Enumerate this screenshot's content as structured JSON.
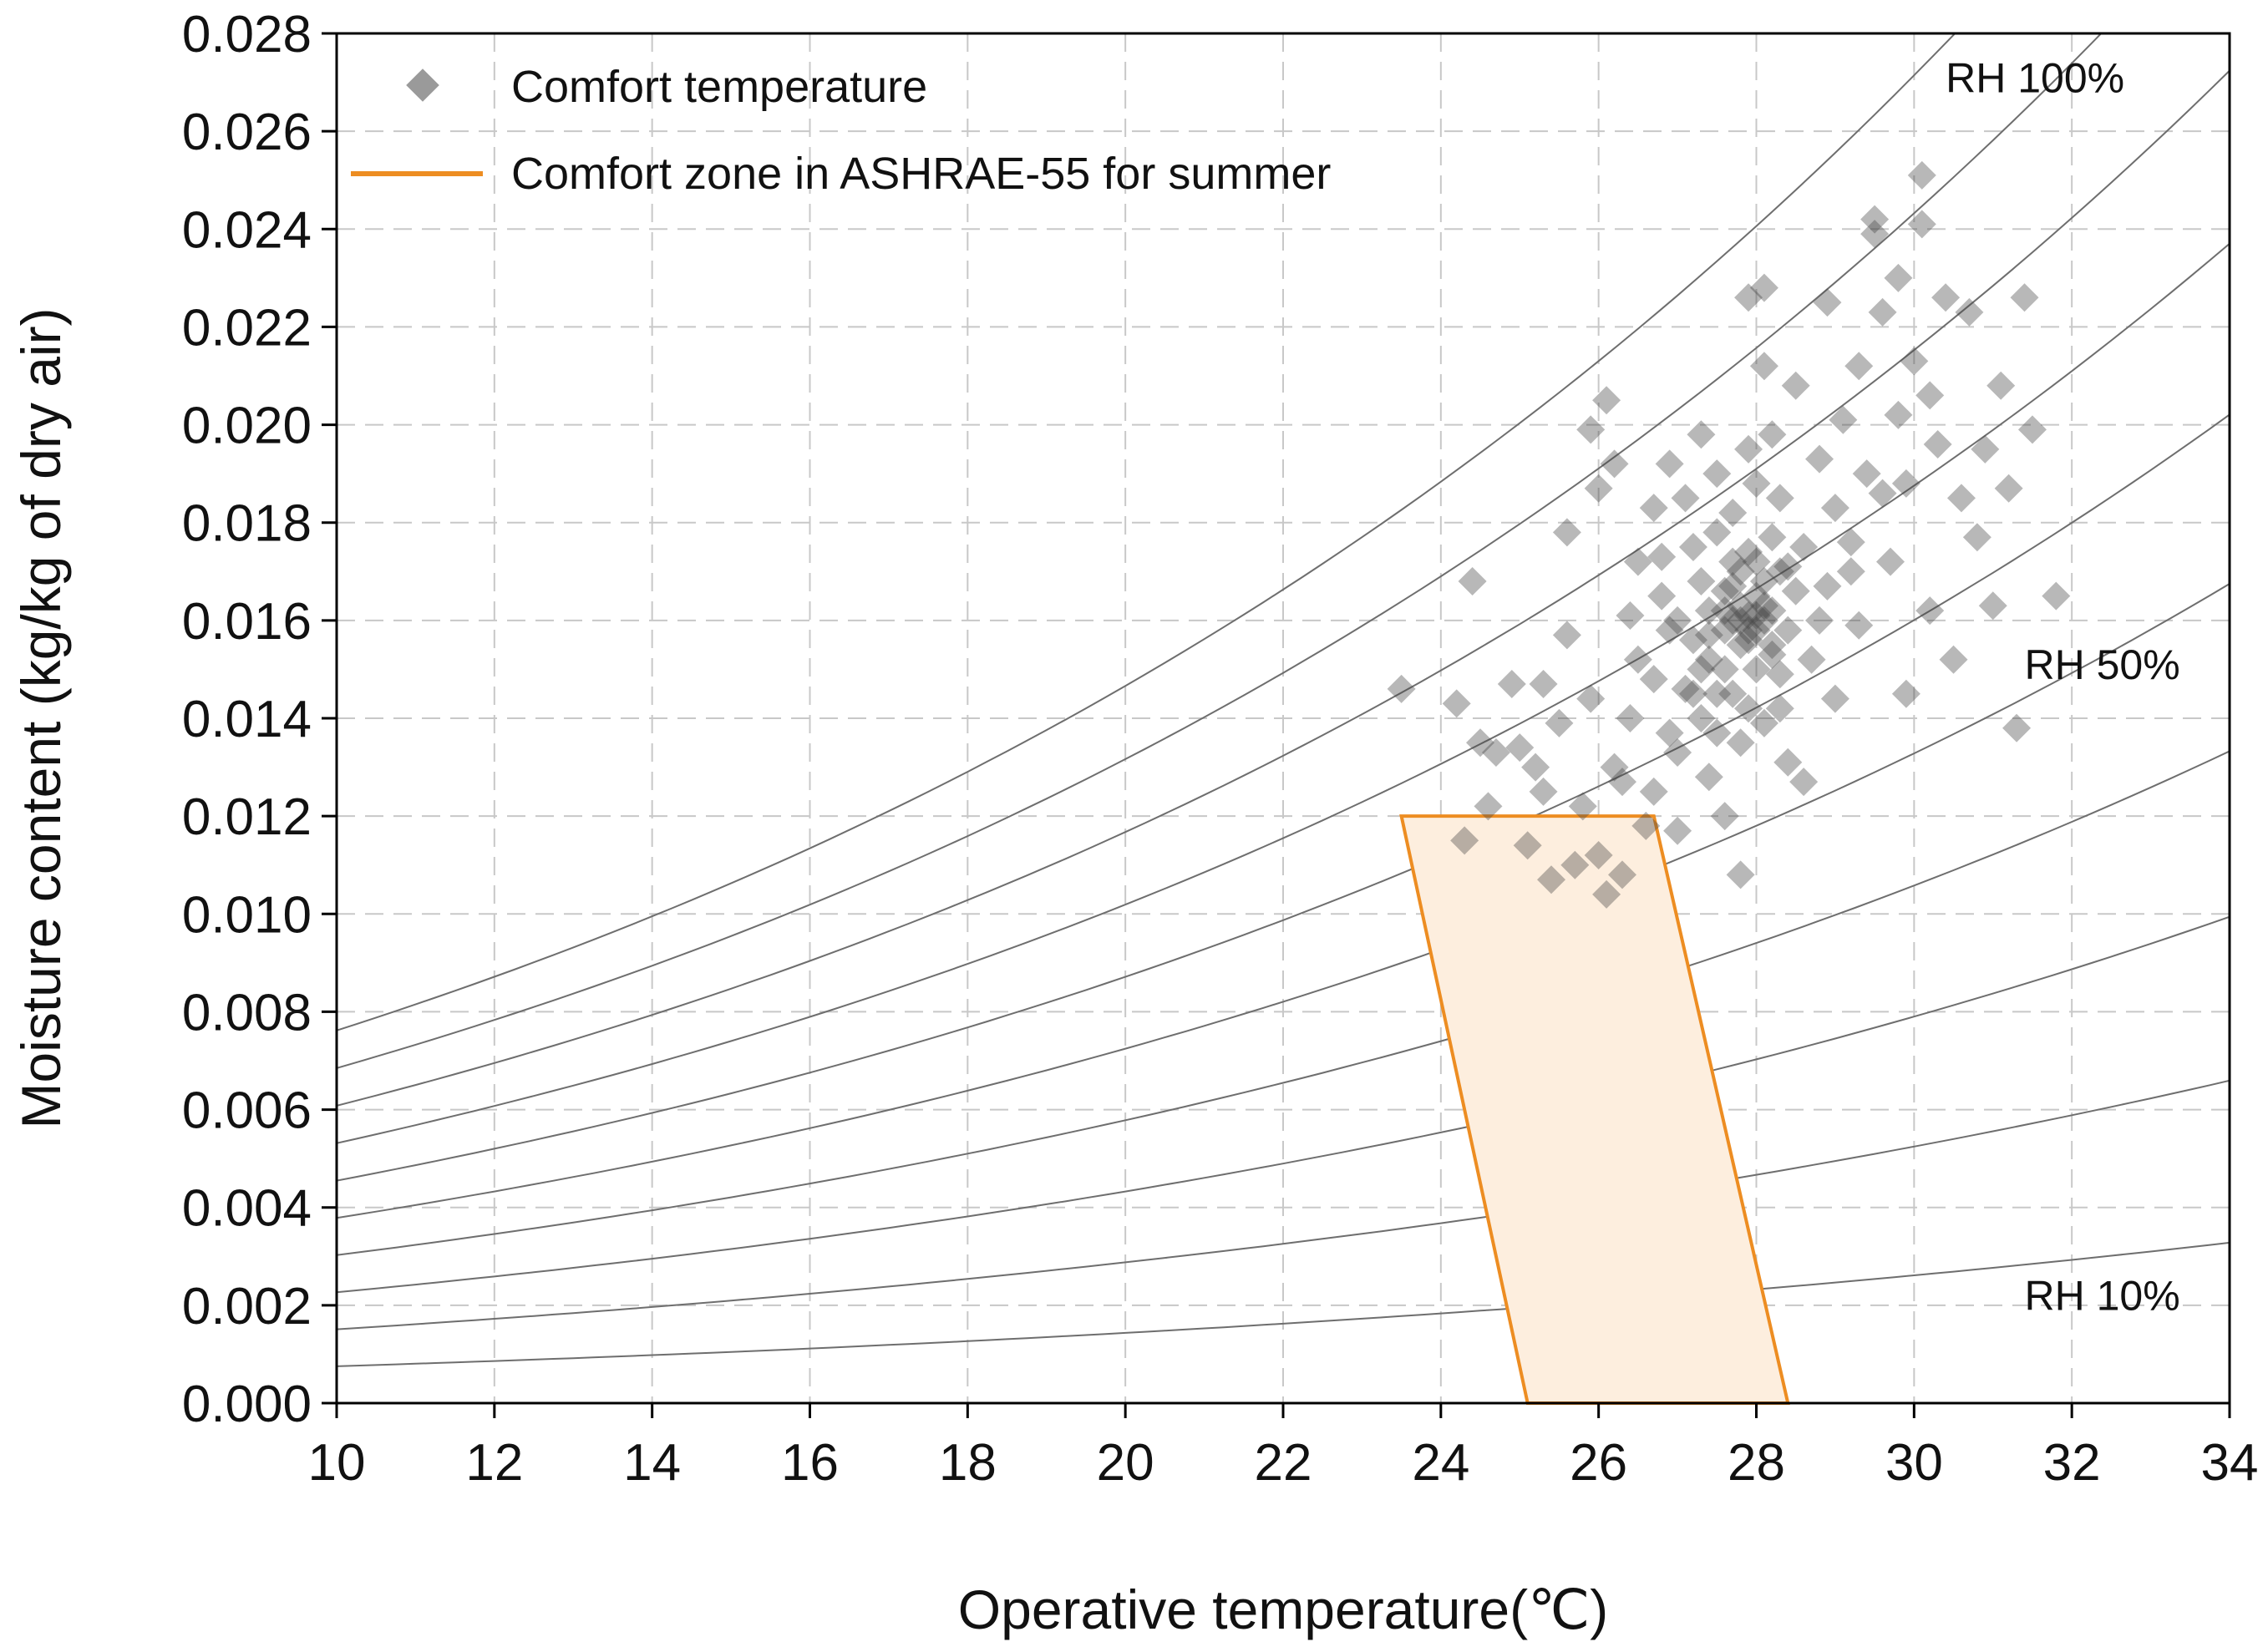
{
  "chart_data": {
    "type": "scatter",
    "title": "",
    "xlabel": "Operative temperature(℃)",
    "ylabel": "Moisture content (kg/kg of dry air)",
    "xlim": [
      10,
      34
    ],
    "ylim": [
      0,
      0.028
    ],
    "xticks": [
      10,
      12,
      14,
      16,
      18,
      20,
      22,
      24,
      26,
      28,
      30,
      32,
      34
    ],
    "xtick_labels": [
      "10",
      "12",
      "14",
      "16",
      "18",
      "20",
      "22",
      "24",
      "26",
      "28",
      "30",
      "32",
      "34"
    ],
    "yticks": [
      0,
      0.002,
      0.004,
      0.006,
      0.008,
      0.01,
      0.012,
      0.014,
      0.016,
      0.018,
      0.02,
      0.022,
      0.024,
      0.026,
      0.028
    ],
    "ytick_labels": [
      "0.000",
      "0.002",
      "0.004",
      "0.006",
      "0.008",
      "0.010",
      "0.012",
      "0.014",
      "0.016",
      "0.018",
      "0.020",
      "0.022",
      "0.024",
      "0.026",
      "0.028"
    ],
    "grid": true,
    "legend_position": "top-left",
    "legend": [
      {
        "label": "Comfort temperature",
        "marker": "diamond",
        "color": "#8c8c8c"
      },
      {
        "label": "Comfort zone in ASHRAE-55 for summer",
        "marker": "line",
        "color": "#ed8d22"
      }
    ],
    "rh_curves": {
      "rh_percent": [
        10,
        20,
        30,
        40,
        50,
        60,
        70,
        80,
        90,
        100
      ],
      "pressure_kpa": 101.325,
      "color": "#6e6e6e"
    },
    "rh_labels": [
      {
        "text": "RH 100%",
        "x": 30.4,
        "y": 0.0268
      },
      {
        "text": "RH 50%",
        "x": 31.4,
        "y": 0.0148
      },
      {
        "text": "RH 10%",
        "x": 31.4,
        "y": 0.0019
      }
    ],
    "comfort_zone": {
      "color": "#ed8d22",
      "fill": "#fdeede",
      "points": [
        [
          23.5,
          0.012
        ],
        [
          26.7,
          0.012
        ],
        [
          28.4,
          0.0
        ],
        [
          25.1,
          0.0
        ]
      ]
    },
    "scatter_series": {
      "name": "Comfort temperature",
      "color": "#444444",
      "opacity": 0.38,
      "points": [
        [
          23.5,
          0.0146
        ],
        [
          24.4,
          0.0168
        ],
        [
          24.2,
          0.0143
        ],
        [
          24.5,
          0.0135
        ],
        [
          24.7,
          0.0133
        ],
        [
          24.3,
          0.0115
        ],
        [
          24.6,
          0.0122
        ],
        [
          24.9,
          0.0147
        ],
        [
          25.1,
          0.0114
        ],
        [
          25.2,
          0.013
        ],
        [
          25.3,
          0.0125
        ],
        [
          25.4,
          0.0107
        ],
        [
          25.5,
          0.0139
        ],
        [
          25.6,
          0.0178
        ],
        [
          25.6,
          0.0157
        ],
        [
          25.7,
          0.011
        ],
        [
          25.8,
          0.0122
        ],
        [
          25.9,
          0.0199
        ],
        [
          25.9,
          0.0144
        ],
        [
          26.0,
          0.0112
        ],
        [
          26.0,
          0.0187
        ],
        [
          26.1,
          0.0104
        ],
        [
          26.1,
          0.0205
        ],
        [
          26.2,
          0.0192
        ],
        [
          26.2,
          0.013
        ],
        [
          26.3,
          0.0108
        ],
        [
          26.3,
          0.0127
        ],
        [
          26.4,
          0.0161
        ],
        [
          26.5,
          0.0152
        ],
        [
          26.6,
          0.0118
        ],
        [
          26.7,
          0.0125
        ],
        [
          26.7,
          0.0148
        ],
        [
          26.7,
          0.0183
        ],
        [
          26.8,
          0.0173
        ],
        [
          26.9,
          0.0137
        ],
        [
          26.9,
          0.0192
        ],
        [
          27.0,
          0.0133
        ],
        [
          27.0,
          0.016
        ],
        [
          27.1,
          0.0185
        ],
        [
          27.1,
          0.0146
        ],
        [
          27.2,
          0.0156
        ],
        [
          27.2,
          0.0175
        ],
        [
          27.3,
          0.014
        ],
        [
          27.3,
          0.0168
        ],
        [
          27.3,
          0.0198
        ],
        [
          27.4,
          0.0152
        ],
        [
          27.4,
          0.0128
        ],
        [
          27.4,
          0.0162
        ],
        [
          27.5,
          0.0178
        ],
        [
          27.5,
          0.0145
        ],
        [
          27.5,
          0.0137
        ],
        [
          27.5,
          0.019
        ],
        [
          27.6,
          0.0158
        ],
        [
          27.6,
          0.0166
        ],
        [
          27.6,
          0.015
        ],
        [
          27.7,
          0.0172
        ],
        [
          27.7,
          0.016
        ],
        [
          27.7,
          0.0145
        ],
        [
          27.7,
          0.0182
        ],
        [
          27.8,
          0.0155
        ],
        [
          27.8,
          0.0163
        ],
        [
          27.8,
          0.017
        ],
        [
          27.8,
          0.0135
        ],
        [
          27.8,
          0.0108
        ],
        [
          27.9,
          0.0158
        ],
        [
          27.9,
          0.0161
        ],
        [
          27.9,
          0.0226
        ],
        [
          27.9,
          0.0195
        ],
        [
          27.9,
          0.0142
        ],
        [
          28.0,
          0.0165
        ],
        [
          28.0,
          0.0158
        ],
        [
          28.0,
          0.0172
        ],
        [
          28.0,
          0.015
        ],
        [
          28.0,
          0.0188
        ],
        [
          28.1,
          0.016
        ],
        [
          28.1,
          0.0228
        ],
        [
          28.1,
          0.0168
        ],
        [
          28.1,
          0.0139
        ],
        [
          28.1,
          0.0212
        ],
        [
          28.2,
          0.0155
        ],
        [
          28.2,
          0.0177
        ],
        [
          28.2,
          0.0162
        ],
        [
          28.2,
          0.0198
        ],
        [
          28.3,
          0.0149
        ],
        [
          28.3,
          0.017
        ],
        [
          28.3,
          0.0185
        ],
        [
          28.4,
          0.0158
        ],
        [
          28.4,
          0.0131
        ],
        [
          28.5,
          0.0166
        ],
        [
          28.5,
          0.0208
        ],
        [
          28.6,
          0.0175
        ],
        [
          28.7,
          0.0152
        ],
        [
          28.8,
          0.0193
        ],
        [
          28.9,
          0.0225
        ],
        [
          28.9,
          0.0167
        ],
        [
          29.0,
          0.0183
        ],
        [
          29.0,
          0.0144
        ],
        [
          29.1,
          0.0201
        ],
        [
          29.2,
          0.0176
        ],
        [
          29.3,
          0.0212
        ],
        [
          29.3,
          0.0159
        ],
        [
          29.4,
          0.019
        ],
        [
          29.5,
          0.0239
        ],
        [
          29.5,
          0.0242
        ],
        [
          29.6,
          0.0223
        ],
        [
          29.7,
          0.0172
        ],
        [
          29.8,
          0.0202
        ],
        [
          29.9,
          0.0145
        ],
        [
          29.9,
          0.0188
        ],
        [
          30.0,
          0.0213
        ],
        [
          30.1,
          0.0251
        ],
        [
          30.1,
          0.0241
        ],
        [
          30.2,
          0.0206
        ],
        [
          30.2,
          0.0162
        ],
        [
          30.3,
          0.0196
        ],
        [
          30.4,
          0.0226
        ],
        [
          30.5,
          0.0152
        ],
        [
          30.6,
          0.0185
        ],
        [
          30.7,
          0.0223
        ],
        [
          30.8,
          0.0177
        ],
        [
          30.9,
          0.0195
        ],
        [
          31.0,
          0.0163
        ],
        [
          31.1,
          0.0208
        ],
        [
          31.2,
          0.0187
        ],
        [
          31.3,
          0.0138
        ],
        [
          31.4,
          0.0226
        ],
        [
          31.5,
          0.0199
        ],
        [
          31.8,
          0.0165
        ],
        [
          27.6,
          0.012
        ],
        [
          27.0,
          0.0117
        ],
        [
          28.6,
          0.0127
        ],
        [
          26.8,
          0.0165
        ],
        [
          27.2,
          0.0145
        ],
        [
          28.3,
          0.0142
        ],
        [
          26.5,
          0.0172
        ],
        [
          28.8,
          0.016
        ],
        [
          27.9,
          0.0174
        ],
        [
          27.4,
          0.0157
        ],
        [
          28.2,
          0.0153
        ],
        [
          27.7,
          0.0167
        ],
        [
          28.0,
          0.0161
        ],
        [
          27.8,
          0.016
        ],
        [
          28.1,
          0.0163
        ],
        [
          27.9,
          0.0156
        ],
        [
          27.6,
          0.0162
        ],
        [
          28.4,
          0.0171
        ],
        [
          27.3,
          0.015
        ],
        [
          26.9,
          0.0158
        ],
        [
          29.2,
          0.017
        ],
        [
          29.6,
          0.0186
        ],
        [
          25.3,
          0.0147
        ],
        [
          25.0,
          0.0134
        ],
        [
          26.4,
          0.014
        ],
        [
          29.8,
          0.023
        ]
      ]
    }
  }
}
